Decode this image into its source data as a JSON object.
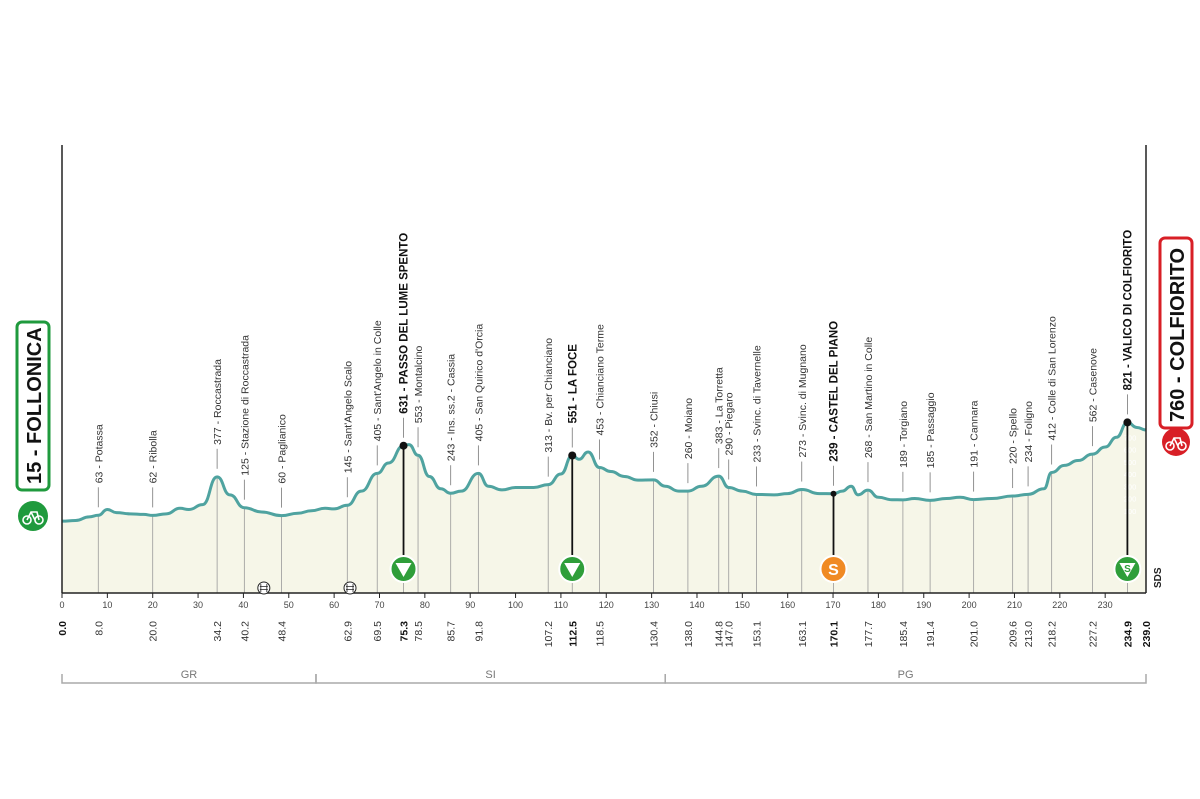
{
  "start": {
    "label": "15 - FOLLONICA",
    "color": "#1f9a3d"
  },
  "finish": {
    "label": "760 - COLFIORITO",
    "color": "#d81f26"
  },
  "sds_label": "SDS",
  "colors": {
    "profile_line": "#4fa3a0",
    "profile_fill": "#f6f6e8",
    "sprint_green": "#2f9e3a",
    "sprint_orange": "#f08a24"
  },
  "chart_data": {
    "type": "area",
    "x_range": [
      0,
      239
    ],
    "y_range": [
      0,
      800
    ],
    "x_ticks": [
      0,
      10,
      20,
      30,
      40,
      50,
      60,
      70,
      80,
      90,
      100,
      110,
      120,
      130,
      140,
      150,
      160,
      170,
      180,
      190,
      200,
      210,
      220,
      230
    ],
    "altitude_ticks": [
      0,
      100,
      200,
      300,
      400,
      500,
      600,
      700
    ],
    "profile": [
      [
        0,
        15
      ],
      [
        3,
        20
      ],
      [
        6,
        50
      ],
      [
        8,
        63
      ],
      [
        10,
        110
      ],
      [
        12,
        85
      ],
      [
        15,
        75
      ],
      [
        18,
        70
      ],
      [
        20,
        62
      ],
      [
        23,
        75
      ],
      [
        26,
        120
      ],
      [
        28,
        110
      ],
      [
        31,
        150
      ],
      [
        34.2,
        377
      ],
      [
        37,
        230
      ],
      [
        40.2,
        125
      ],
      [
        44,
        90
      ],
      [
        48.4,
        60
      ],
      [
        52,
        80
      ],
      [
        55,
        100
      ],
      [
        58,
        120
      ],
      [
        60,
        115
      ],
      [
        62.9,
        145
      ],
      [
        66,
        260
      ],
      [
        69.5,
        405
      ],
      [
        72,
        490
      ],
      [
        75.3,
        631
      ],
      [
        76.5,
        640
      ],
      [
        78.5,
        553
      ],
      [
        81,
        380
      ],
      [
        83.5,
        280
      ],
      [
        85.7,
        243
      ],
      [
        88,
        260
      ],
      [
        91.8,
        405
      ],
      [
        94,
        300
      ],
      [
        97,
        270
      ],
      [
        100,
        290
      ],
      [
        104,
        290
      ],
      [
        107.2,
        313
      ],
      [
        110,
        400
      ],
      [
        112.5,
        551
      ],
      [
        114,
        520
      ],
      [
        116,
        580
      ],
      [
        118.5,
        453
      ],
      [
        121,
        420
      ],
      [
        124,
        380
      ],
      [
        127,
        350
      ],
      [
        130.4,
        352
      ],
      [
        133,
        300
      ],
      [
        136,
        260
      ],
      [
        138,
        260
      ],
      [
        141,
        300
      ],
      [
        144.8,
        383
      ],
      [
        147,
        290
      ],
      [
        150,
        260
      ],
      [
        153.1,
        233
      ],
      [
        157,
        230
      ],
      [
        160,
        240
      ],
      [
        163.1,
        273
      ],
      [
        167,
        240
      ],
      [
        170.1,
        239
      ],
      [
        172,
        260
      ],
      [
        174,
        300
      ],
      [
        175.5,
        230
      ],
      [
        177.7,
        268
      ],
      [
        180,
        210
      ],
      [
        183,
        190
      ],
      [
        185.4,
        189
      ],
      [
        188,
        200
      ],
      [
        191.4,
        185
      ],
      [
        195,
        200
      ],
      [
        198,
        210
      ],
      [
        201,
        191
      ],
      [
        205,
        200
      ],
      [
        209.6,
        220
      ],
      [
        213,
        234
      ],
      [
        216.5,
        280
      ],
      [
        218.2,
        412
      ],
      [
        221,
        470
      ],
      [
        224,
        510
      ],
      [
        227.2,
        562
      ],
      [
        230,
        620
      ],
      [
        232.5,
        700
      ],
      [
        234.9,
        821
      ],
      [
        237,
        780
      ],
      [
        239,
        760
      ]
    ],
    "km_labels": [
      "0.0",
      "8.0",
      "20.0",
      "34.2",
      "40.2",
      "48.4",
      "62.9",
      "69.5",
      "75.3",
      "78.5",
      "85.7",
      "91.8",
      "107.2",
      "112.5",
      "118.5",
      "130.4",
      "138.0",
      "144.8",
      "147.0",
      "153.1",
      "163.1",
      "170.1",
      "177.7",
      "185.4",
      "191.4",
      "201.0",
      "209.6",
      "213.0",
      "218.2",
      "227.2",
      "234.9",
      "239.0"
    ],
    "km_bold": [
      "0.0",
      "75.3",
      "112.5",
      "170.1",
      "234.9",
      "239.0"
    ],
    "waypoints": [
      {
        "km": 8.0,
        "alt": 63,
        "name": "63 - Potassa"
      },
      {
        "km": 20.0,
        "alt": 62,
        "name": "62 - Ribolla"
      },
      {
        "km": 34.2,
        "alt": 377,
        "name": "377 - Roccastrada"
      },
      {
        "km": 40.2,
        "alt": 125,
        "name": "125 - Stazione di Roccastrada"
      },
      {
        "km": 48.4,
        "alt": 60,
        "name": "60 - Paglianico"
      },
      {
        "km": 62.9,
        "alt": 145,
        "name": "145 - Sant'Angelo Scalo"
      },
      {
        "km": 69.5,
        "alt": 405,
        "name": "405 - Sant'Angelo in Colle"
      },
      {
        "km": 75.3,
        "alt": 631,
        "name": "631 - PASSO DEL LUME SPENTO",
        "bold": true
      },
      {
        "km": 78.5,
        "alt": 553,
        "name": "553 - Montalcino"
      },
      {
        "km": 85.7,
        "alt": 243,
        "name": "243 - Ins. ss.2 - Cassia"
      },
      {
        "km": 91.8,
        "alt": 405,
        "name": "405 - San Quirico d'Orcia"
      },
      {
        "km": 107.2,
        "alt": 313,
        "name": "313 - Bv. per Chianciano"
      },
      {
        "km": 112.5,
        "alt": 551,
        "name": "551 - LA FOCE",
        "bold": true
      },
      {
        "km": 118.5,
        "alt": 453,
        "name": "453 - Chianciano Terme"
      },
      {
        "km": 130.4,
        "alt": 352,
        "name": "352 - Chiusi"
      },
      {
        "km": 138.0,
        "alt": 260,
        "name": "260 - Moiano"
      },
      {
        "km": 144.8,
        "alt": 383,
        "name": "383 - La Torretta"
      },
      {
        "km": 147.0,
        "alt": 290,
        "name": "290 - Piegaro"
      },
      {
        "km": 153.1,
        "alt": 233,
        "name": "233 - Svinc. di Tavernelle"
      },
      {
        "km": 163.1,
        "alt": 273,
        "name": "273 - Svinc. di Mugnano"
      },
      {
        "km": 170.1,
        "alt": 239,
        "name": "239 - CASTEL DEL PIANO",
        "bold": true
      },
      {
        "km": 177.7,
        "alt": 268,
        "name": "268 - San Martino in Colle"
      },
      {
        "km": 185.4,
        "alt": 189,
        "name": "189 - Torgiano"
      },
      {
        "km": 191.4,
        "alt": 185,
        "name": "185 - Passaggio"
      },
      {
        "km": 201.0,
        "alt": 191,
        "name": "191 - Cannara"
      },
      {
        "km": 209.6,
        "alt": 220,
        "name": "220 - Spello"
      },
      {
        "km": 213.0,
        "alt": 234,
        "name": "234 - Foligno"
      },
      {
        "km": 218.2,
        "alt": 412,
        "name": "412 - Colle di San Lorenzo"
      },
      {
        "km": 227.2,
        "alt": 562,
        "name": "562 - Casenove"
      },
      {
        "km": 234.9,
        "alt": 821,
        "name": "821 - VALICO DI COLFIORITO",
        "bold": true
      }
    ],
    "climb_points": [
      75.3,
      112.5,
      234.9
    ],
    "sprint_points": [
      170.1
    ],
    "markers": [
      {
        "km": 75.3,
        "type": "gpm"
      },
      {
        "km": 112.5,
        "type": "gpm"
      },
      {
        "km": 170.1,
        "type": "sprint",
        "label": "S"
      },
      {
        "km": 234.9,
        "type": "gpm-sprint",
        "label": "S"
      }
    ],
    "level_crossings_km": [
      44.5,
      63.5
    ],
    "provinces": [
      {
        "label": "GR",
        "from": 0,
        "to": 56
      },
      {
        "label": "SI",
        "from": 56,
        "to": 133
      },
      {
        "label": "PG",
        "from": 133,
        "to": 239
      }
    ]
  }
}
